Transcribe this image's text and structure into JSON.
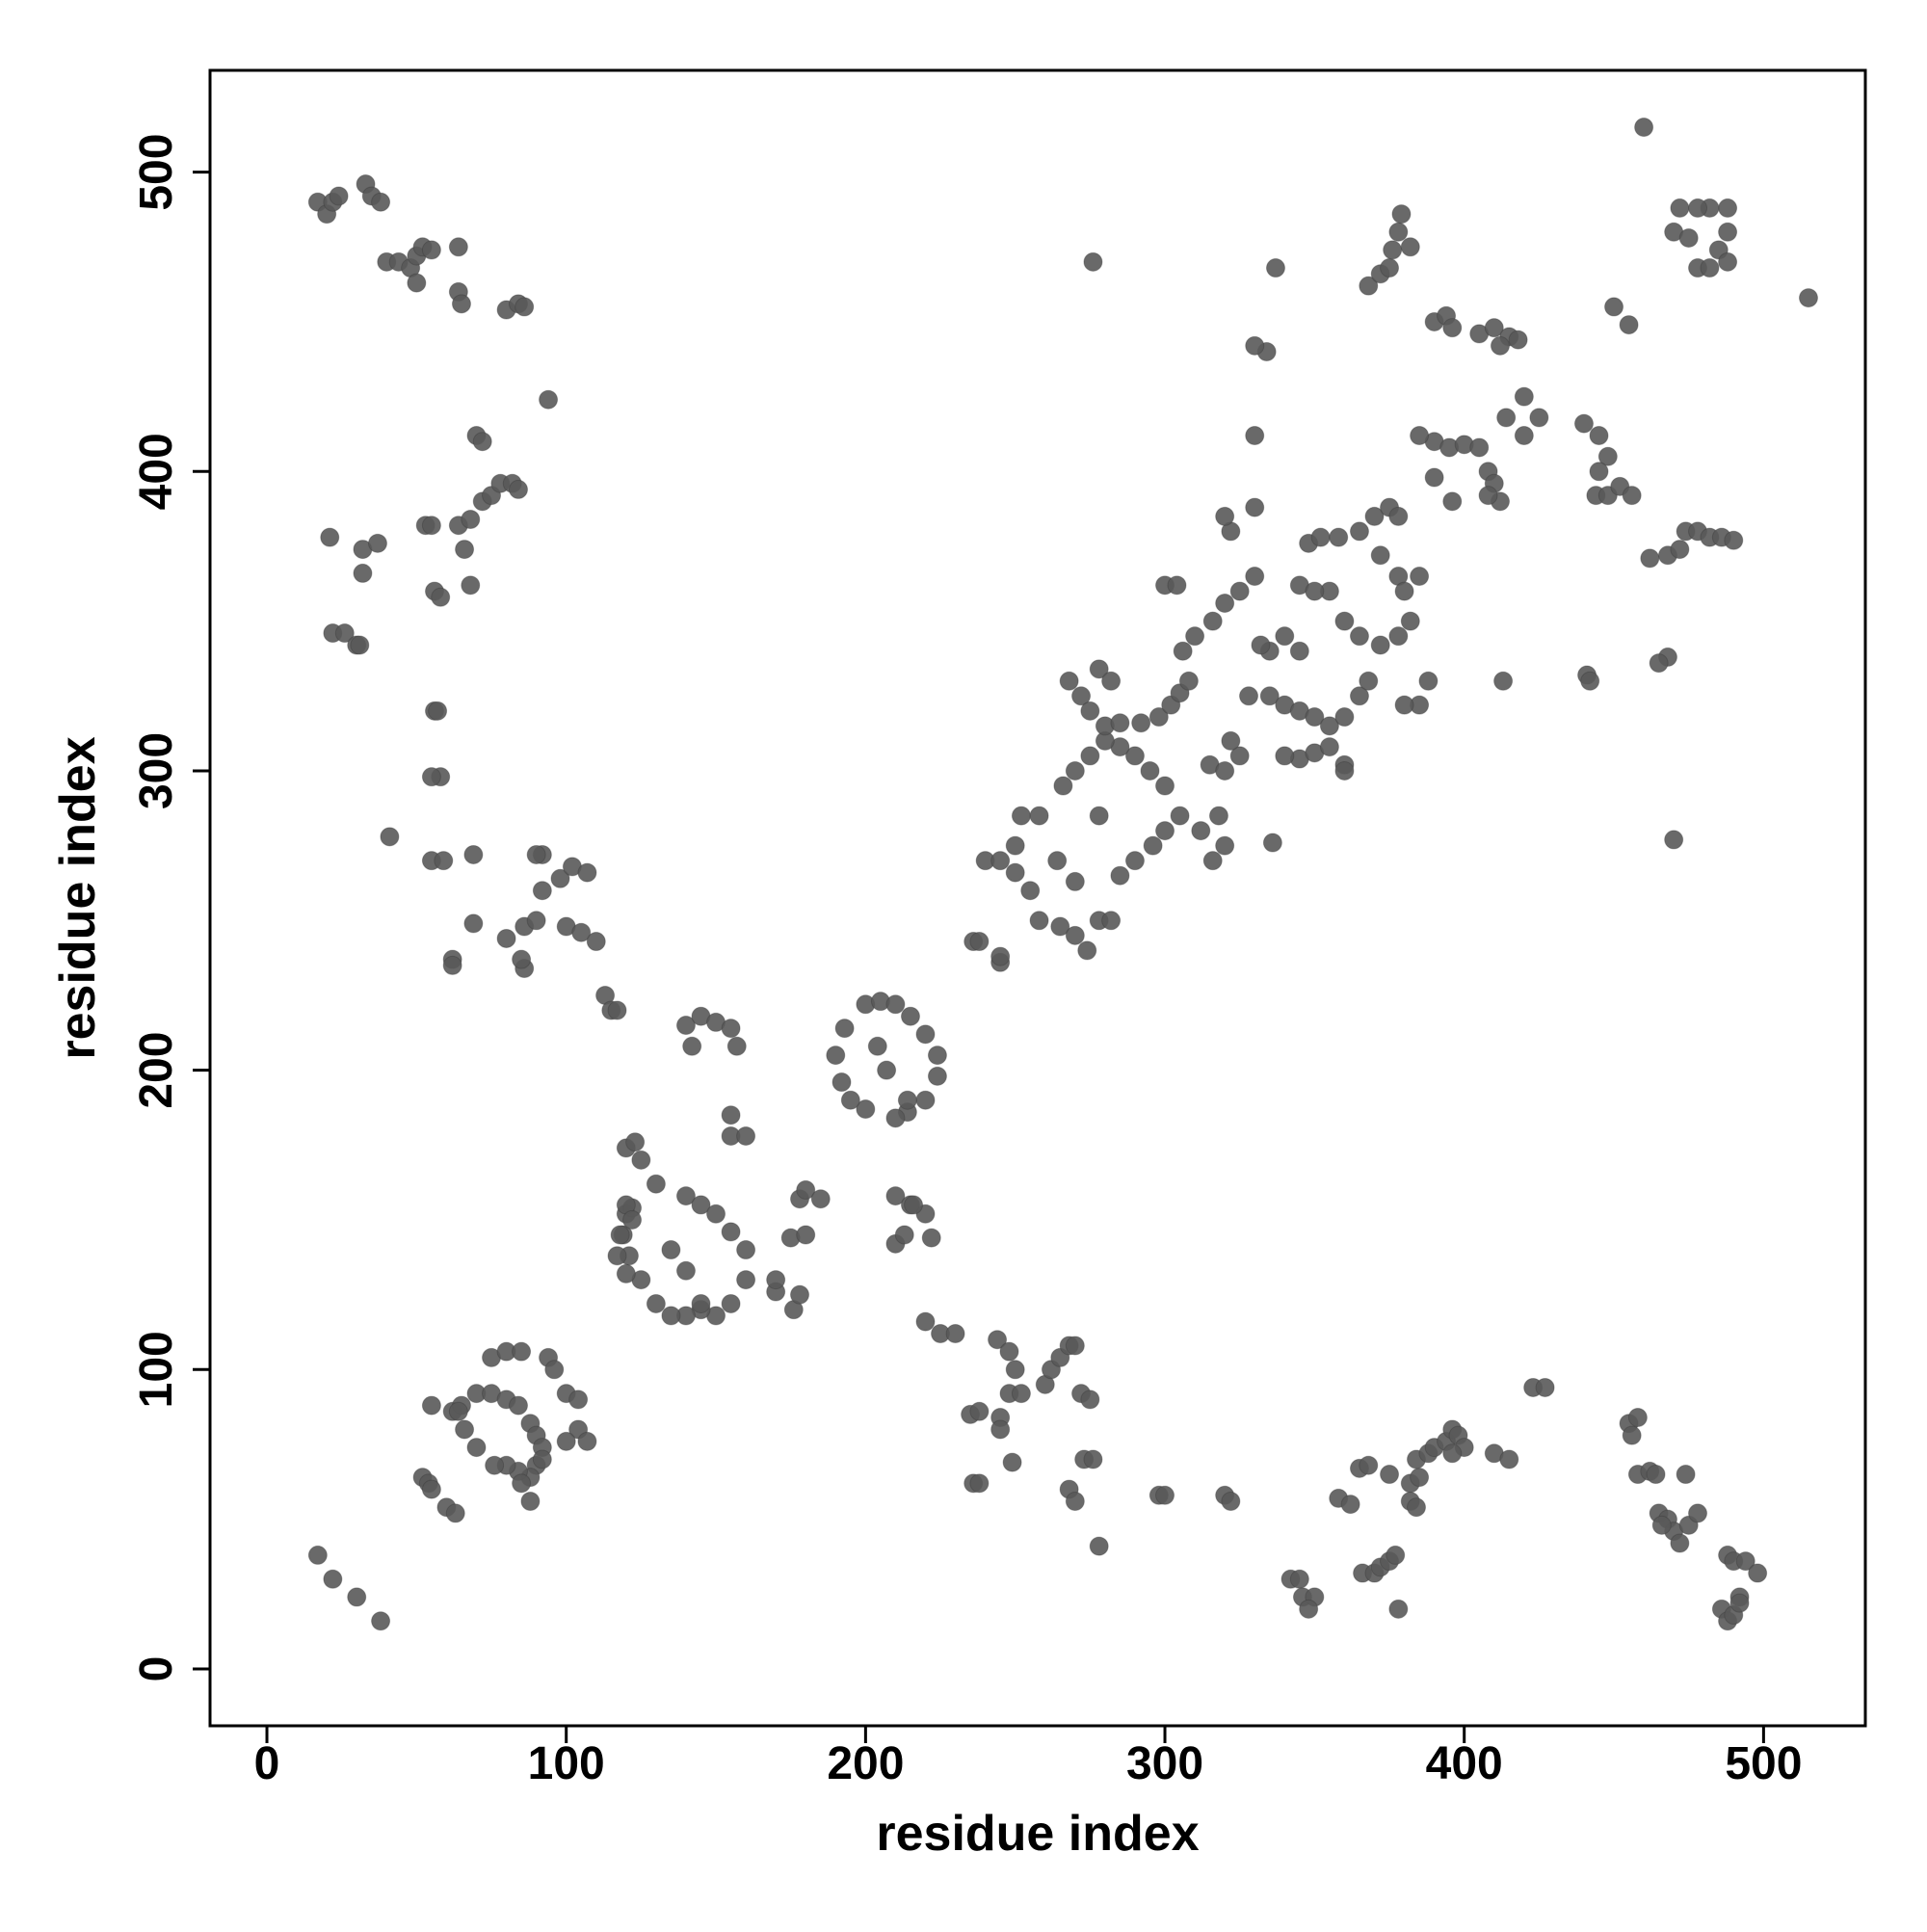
{
  "chart_data": {
    "type": "scatter",
    "xlabel": "residue index",
    "ylabel": "residue index",
    "color": "#595959",
    "xlim": [
      -19,
      534
    ],
    "ylim": [
      -19,
      534
    ],
    "xticks": [
      0,
      100,
      200,
      300,
      400,
      500
    ],
    "yticks": [
      0,
      100,
      200,
      300,
      400,
      500
    ],
    "grid": false,
    "x": [
      17,
      20,
      22,
      24,
      33,
      35,
      38,
      40,
      44,
      48,
      50,
      52,
      55,
      50,
      64,
      64,
      65,
      80,
      84,
      86,
      94,
      21,
      32,
      32,
      37,
      22,
      26,
      30,
      31,
      53,
      55,
      64,
      68,
      72,
      75,
      78,
      82,
      84,
      70,
      72,
      56,
      58,
      66,
      68,
      56,
      57,
      58,
      55,
      41,
      55,
      59,
      69,
      69,
      62,
      62,
      80,
      86,
      90,
      92,
      98,
      102,
      107,
      92,
      90,
      86,
      85,
      100,
      105,
      110,
      113,
      115,
      117,
      140,
      145,
      150,
      155,
      157,
      142,
      120,
      123,
      125,
      130,
      140,
      145,
      150,
      155,
      160,
      160,
      155,
      150,
      145,
      140,
      135,
      130,
      125,
      121,
      119,
      120,
      122,
      135,
      140,
      145,
      155,
      155,
      160,
      176,
      178,
      170,
      175,
      180,
      178,
      180,
      185,
      170,
      200,
      205,
      210,
      215,
      220,
      224,
      224,
      220,
      214,
      210,
      200,
      195,
      192,
      190,
      193,
      204,
      207,
      214,
      210,
      215,
      220,
      222,
      210,
      213,
      216,
      220,
      225,
      230,
      236,
      238,
      245,
      245,
      240,
      245,
      250,
      252,
      258,
      255,
      250,
      258,
      265,
      270,
      278,
      282,
      285,
      290,
      296,
      300,
      305,
      300,
      295,
      290,
      285,
      280,
      275,
      270,
      266,
      268,
      272,
      275,
      280,
      285,
      292,
      278,
      270,
      264,
      274,
      278,
      282,
      298,
      302,
      305,
      308,
      306,
      310,
      316,
      320,
      325,
      330,
      300,
      304,
      315,
      320,
      325,
      322,
      318,
      320,
      316,
      312,
      335,
      332,
      328,
      335,
      340,
      345,
      350,
      355,
      360,
      365,
      368,
      345,
      350,
      355,
      360,
      345,
      348,
      352,
      358,
      365,
      370,
      375,
      378,
      372,
      378,
      380,
      385,
      382,
      378,
      372,
      365,
      360,
      355,
      350,
      340,
      345,
      330,
      322,
      320,
      330,
      337,
      334,
      330,
      276,
      278,
      360,
      388,
      385,
      380,
      368,
      372,
      375,
      378,
      379,
      376,
      382,
      390,
      394,
      396,
      405,
      410,
      415,
      418,
      412,
      420,
      425,
      414,
      420,
      390,
      395,
      400,
      405,
      408,
      410,
      412,
      408,
      385,
      390,
      396,
      440,
      445,
      448,
      445,
      444,
      448,
      452,
      456,
      450,
      455,
      460,
      515,
      472,
      470,
      475,
      478,
      482,
      485,
      488,
      488,
      482,
      478,
      488,
      474,
      478,
      482,
      486,
      490,
      462,
      468,
      472,
      468,
      465,
      470,
      441,
      442,
      413,
      340,
      336,
      17,
      22,
      30,
      38,
      52,
      54,
      55,
      60,
      63,
      55,
      62,
      65,
      70,
      75,
      80,
      84,
      88,
      90,
      92,
      90,
      88,
      84,
      80,
      76,
      70,
      66,
      64,
      75,
      80,
      85,
      94,
      96,
      100,
      104,
      104,
      107,
      100,
      92,
      88,
      85,
      120,
      122,
      118,
      117,
      120,
      235,
      238,
      245,
      245,
      236,
      238,
      244,
      248,
      250,
      248,
      252,
      249,
      260,
      262,
      265,
      268,
      270,
      272,
      275,
      273,
      276,
      268,
      270,
      298,
      300,
      320,
      322,
      342,
      345,
      346,
      350,
      348,
      358,
      362,
      365,
      368,
      366,
      370,
      372,
      375,
      377,
      378,
      375,
      382,
      385,
      384,
      388,
      390,
      394,
      396,
      398,
      400,
      396,
      382,
      384,
      410,
      415,
      423,
      427,
      455,
      458,
      456,
      458,
      462,
      464,
      465,
      468,
      470,
      472,
      475,
      478,
      474,
      466,
      488,
      490,
      494,
      498,
      492,
      486,
      488,
      490,
      492
    ],
    "values": [
      490,
      486,
      490,
      492,
      496,
      492,
      490,
      470,
      470,
      468,
      472,
      475,
      474,
      463,
      475,
      460,
      456,
      454,
      456,
      455,
      424,
      378,
      374,
      366,
      376,
      346,
      346,
      342,
      342,
      382,
      382,
      382,
      384,
      390,
      392,
      396,
      396,
      394,
      412,
      410,
      360,
      358,
      374,
      362,
      320,
      320,
      298,
      298,
      278,
      270,
      270,
      272,
      249,
      237,
      235,
      244,
      248,
      250,
      260,
      264,
      268,
      266,
      272,
      272,
      234,
      237,
      248,
      246,
      243,
      225,
      220,
      220,
      215,
      218,
      216,
      214,
      208,
      208,
      174,
      176,
      170,
      162,
      158,
      155,
      152,
      146,
      140,
      130,
      122,
      118,
      120,
      118,
      118,
      122,
      130,
      138,
      145,
      152,
      154,
      140,
      133,
      122,
      185,
      178,
      178,
      120,
      125,
      126,
      144,
      145,
      157,
      160,
      157,
      130,
      222,
      223,
      222,
      218,
      212,
      205,
      198,
      190,
      186,
      184,
      187,
      190,
      196,
      205,
      214,
      208,
      200,
      190,
      158,
      155,
      152,
      144,
      142,
      145,
      155,
      116,
      112,
      112,
      243,
      243,
      236,
      238,
      270,
      270,
      275,
      285,
      285,
      260,
      266,
      250,
      248,
      245,
      250,
      250,
      265,
      270,
      275,
      280,
      285,
      295,
      300,
      305,
      308,
      310,
      305,
      300,
      295,
      330,
      325,
      320,
      315,
      316,
      316,
      285,
      263,
      270,
      240,
      334,
      330,
      318,
      322,
      326,
      330,
      340,
      345,
      350,
      356,
      360,
      365,
      362,
      362,
      302,
      300,
      305,
      310,
      285,
      275,
      270,
      280,
      340,
      342,
      325,
      325,
      322,
      320,
      318,
      315,
      318,
      325,
      330,
      304,
      306,
      308,
      302,
      362,
      376,
      378,
      378,
      380,
      385,
      388,
      385,
      372,
      365,
      360,
      365,
      350,
      345,
      342,
      345,
      350,
      360,
      360,
      345,
      340,
      388,
      380,
      385,
      412,
      468,
      440,
      442,
      470,
      41,
      300,
      330,
      322,
      322,
      462,
      466,
      468,
      480,
      486,
      474,
      475,
      450,
      452,
      448,
      446,
      448,
      445,
      444,
      442,
      425,
      418,
      418,
      412,
      410,
      408,
      409,
      408,
      400,
      396,
      390,
      392,
      412,
      398,
      390,
      416,
      412,
      405,
      400,
      392,
      392,
      395,
      392,
      455,
      449,
      515,
      458,
      488,
      480,
      478,
      468,
      468,
      474,
      480,
      488,
      488,
      488,
      470,
      380,
      380,
      378,
      378,
      377,
      371,
      372,
      374,
      338,
      336,
      277,
      332,
      330,
      330,
      305,
      276,
      38,
      30,
      24,
      16,
      64,
      62,
      60,
      54,
      52,
      88,
      86,
      88,
      92,
      92,
      90,
      88,
      82,
      78,
      74,
      68,
      64,
      66,
      68,
      68,
      74,
      80,
      86,
      104,
      106,
      106,
      104,
      100,
      92,
      90,
      80,
      76,
      76,
      70,
      56,
      62,
      155,
      150,
      145,
      138,
      132,
      85,
      86,
      84,
      80,
      62,
      62,
      110,
      106,
      100,
      92,
      92,
      69,
      95,
      100,
      104,
      108,
      108,
      92,
      90,
      70,
      70,
      60,
      56,
      58,
      58,
      58,
      56,
      30,
      30,
      24,
      24,
      20,
      57,
      55,
      67,
      68,
      32,
      32,
      34,
      36,
      38,
      20,
      65,
      62,
      64,
      70,
      72,
      74,
      76,
      80,
      78,
      74,
      72,
      56,
      54,
      72,
      70,
      94,
      94,
      82,
      84,
      78,
      65,
      66,
      65,
      52,
      50,
      46,
      42,
      48,
      52,
      65,
      48,
      38,
      36,
      36,
      32,
      24,
      20,
      16,
      18,
      22
    ]
  }
}
